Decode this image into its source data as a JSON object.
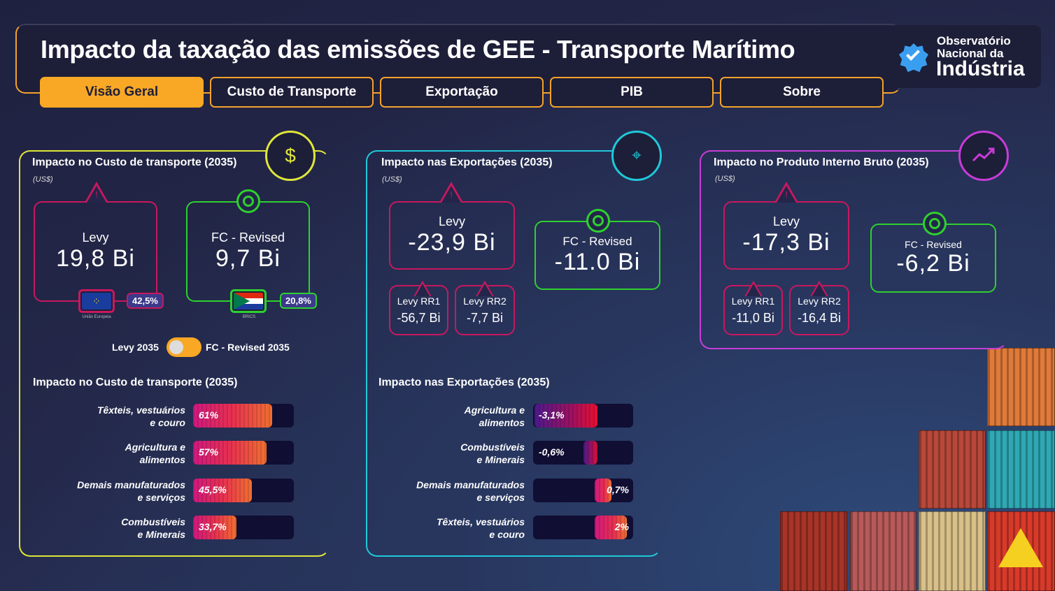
{
  "header": {
    "title": "Impacto da taxação das emissões de GEE - Transporte Marítimo",
    "logo": {
      "line1": "Observatório",
      "line2": "Nacional da",
      "line3": "Indústria"
    }
  },
  "tabs": [
    {
      "label": "Visão Geral",
      "active": true
    },
    {
      "label": "Custo de Transporte"
    },
    {
      "label": "Exportação"
    },
    {
      "label": "PIB"
    },
    {
      "label": "Sobre"
    }
  ],
  "colors": {
    "accent": "#f9a825",
    "levy": "#c8185e",
    "fc": "#2ed12e",
    "panel1": "#dfe63a",
    "panel2": "#1fc8d8",
    "panel3": "#c83cd8"
  },
  "transport": {
    "title": "Impacto no Custo de transporte (2035)",
    "unit": "(US$)",
    "icon": "dollar-target-icon",
    "levy": {
      "label": "Levy",
      "value": "19,8 Bi",
      "share": "42,5%",
      "region": "União Europeia"
    },
    "fc": {
      "label": "FC - Revised",
      "value": "9,7 Bi",
      "share": "20,8%",
      "region": "BRICS"
    },
    "toggle": {
      "left": "Levy 2035",
      "right": "FC - Revised 2035"
    },
    "sectors_title": "Impacto no Custo de transporte (2035)",
    "sectors": [
      {
        "l1": "Têxteis, vestuários",
        "l2": "e couro",
        "value": 61,
        "label": "61%"
      },
      {
        "l1": "Agricultura e",
        "l2": "alimentos",
        "value": 57,
        "label": "57%"
      },
      {
        "l1": "Demais manufaturados",
        "l2": "e serviços",
        "value": 45.5,
        "label": "45,5%"
      },
      {
        "l1": "Combustíveis",
        "l2": "e Minerais",
        "value": 33.7,
        "label": "33,7%"
      }
    ]
  },
  "exports": {
    "title": "Impacto nas Exportações (2035)",
    "unit": "(US$)",
    "icon": "location-route-icon",
    "levy": {
      "label": "Levy",
      "value": "-23,9 Bi"
    },
    "rr1": {
      "label": "Levy RR1",
      "value": "-56,7 Bi"
    },
    "rr2": {
      "label": "Levy RR2",
      "value": "-7,7 Bi"
    },
    "fc": {
      "label": "FC - Revised",
      "value": "-11.0 Bi"
    },
    "sectors_title": "Impacto nas Exportações (2035)",
    "sectors": [
      {
        "l1": "Agricultura e",
        "l2": "alimentos",
        "value": -3.1,
        "label": "-3,1%"
      },
      {
        "l1": "Combustíveis",
        "l2": "e Minerais",
        "value": -0.6,
        "label": "-0,6%"
      },
      {
        "l1": "Demais manufaturados",
        "l2": "e serviços",
        "value": 0.7,
        "label": "0,7%"
      },
      {
        "l1": "Têxteis, vestuários",
        "l2": "e couro",
        "value": 2,
        "label": "2%"
      }
    ]
  },
  "gdp": {
    "title": "Impacto no Produto Interno Bruto (2035)",
    "unit": "(US$)",
    "icon": "chart-growth-icon",
    "levy": {
      "label": "Levy",
      "value": "-17,3 Bi"
    },
    "rr1": {
      "label": "Levy RR1",
      "value": "-11,0 Bi"
    },
    "rr2": {
      "label": "Levy RR2",
      "value": "-16,4 Bi"
    },
    "fc": {
      "label": "FC - Revised",
      "value": "-6,2 Bi"
    }
  }
}
